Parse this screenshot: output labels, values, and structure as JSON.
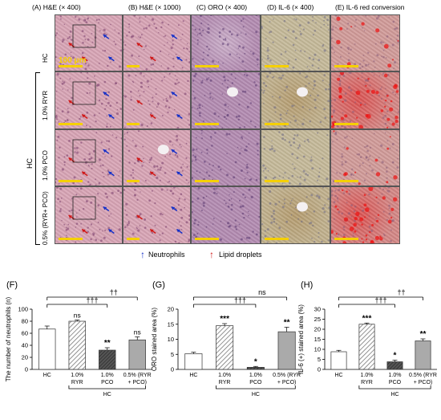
{
  "micrograph": {
    "columns": [
      "(A) H&E (× 400)",
      "(B) H&E (× 1000)",
      "(C) ORO (× 400)",
      "(D) IL-6 (× 400)",
      "(E) IL-6 red conversion"
    ],
    "row_labels": [
      "HC",
      "1.0% RYR",
      "1.0% PCO",
      "0.5% (RYR+ PCO)"
    ],
    "group_label": "HC",
    "scale_bar": "100 μm",
    "legend": {
      "neutrophils": "Neutrophils",
      "lipid": "Lipid droplets"
    },
    "colors": {
      "neutrophil_arrow": "#1530c8",
      "lipid_arrow": "#d01818",
      "he_bg": "#d7a3b4",
      "oro_bg": "#b28ab0",
      "il6_bg": "#c4b898",
      "red_bg": "#d09a98"
    }
  },
  "chart_data": [
    {
      "panel": "(F)",
      "type": "bar",
      "categories": [
        "HC",
        "1.0% RYR",
        "1.0% PCO",
        "0.5% (RYR + PCO)"
      ],
      "values": [
        67,
        80,
        32,
        49
      ],
      "errors": [
        5,
        2,
        4,
        5
      ],
      "ylabel": "The number of neutrophils (n)",
      "ylim": [
        0,
        100
      ],
      "yticks": [
        "0",
        "20",
        "40",
        "60",
        "80",
        "100"
      ],
      "sig": [
        "",
        "ns",
        "**",
        "ns"
      ],
      "brackets": [
        "††",
        "†††"
      ],
      "group_label": "HC"
    },
    {
      "panel": "(G)",
      "type": "bar",
      "categories": [
        "HC",
        "1.0% RYR",
        "1.0% PCO",
        "0.5% (RYR + PCO)"
      ],
      "values": [
        5.2,
        14.5,
        0.7,
        12.5
      ],
      "errors": [
        0.5,
        0.7,
        0.3,
        1.5
      ],
      "ylabel": "ORO stained area (%)",
      "ylim": [
        0,
        20
      ],
      "yticks": [
        "0",
        "5",
        "10",
        "15",
        "20"
      ],
      "sig": [
        "",
        "***",
        "*",
        "**"
      ],
      "brackets": [
        "ns",
        "†††"
      ],
      "group_label": "HC"
    },
    {
      "panel": "(H)",
      "type": "bar",
      "categories": [
        "HC",
        "1.0% RYR",
        "1.0% PCO",
        "0.5% (RYR + PCO)"
      ],
      "values": [
        8.8,
        22.5,
        3.8,
        14.2
      ],
      "errors": [
        0.7,
        0.6,
        0.8,
        1.0
      ],
      "ylabel": "IL-6 (+) stained area (%)",
      "ylim": [
        0,
        30
      ],
      "yticks": [
        "0",
        "5",
        "10",
        "15",
        "20",
        "25",
        "30"
      ],
      "sig": [
        "",
        "***",
        "*",
        "**"
      ],
      "brackets": [
        "††",
        "†††"
      ],
      "group_label": "HC"
    }
  ]
}
